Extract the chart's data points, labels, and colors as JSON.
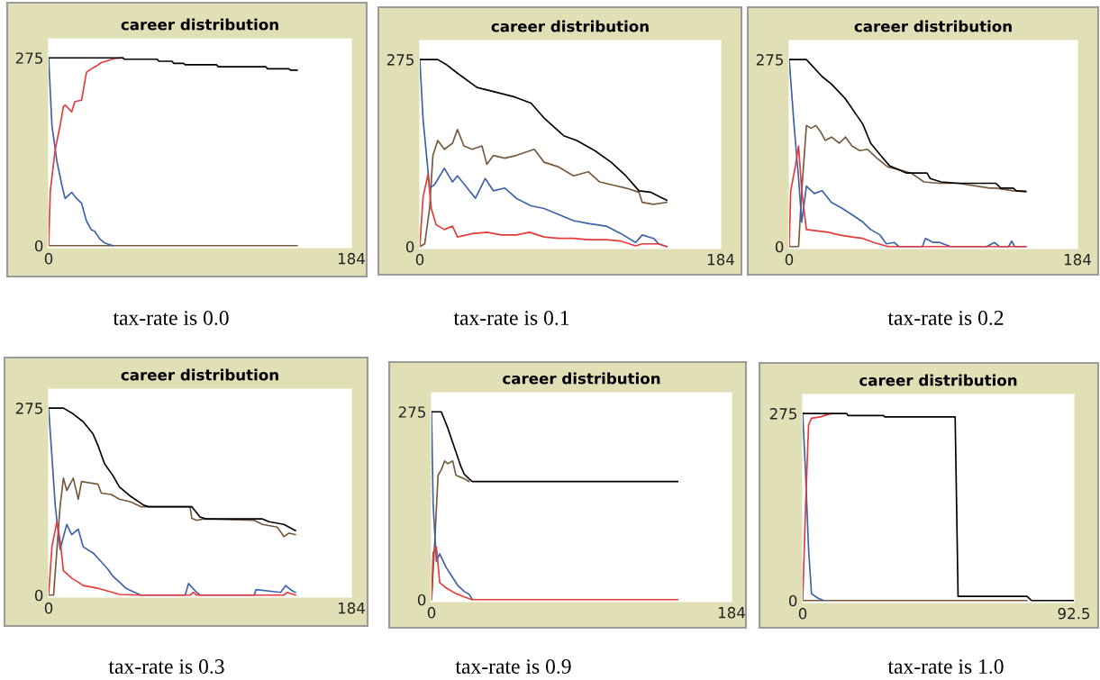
{
  "chart_data": [
    {
      "type": "line",
      "title": "career distribution",
      "annotations": [
        "tax-rate is 0.0"
      ],
      "xlim": [
        0,
        184
      ],
      "xticks": [
        0,
        184
      ],
      "ylim": [
        -3,
        303
      ],
      "yticks": [
        0,
        275
      ],
      "grid": false,
      "marker": "none",
      "line_style": "solid",
      "series": [
        {
          "color": "#765a3e",
          "x": [
            0,
            151
          ],
          "values": [
            0,
            0
          ]
        },
        {
          "color": "#3d62a8",
          "x": [
            0,
            2,
            5,
            8,
            10,
            14,
            17,
            20,
            23,
            26,
            28,
            31,
            34,
            39
          ],
          "values": [
            275,
            176,
            124,
            89,
            69,
            78,
            69,
            62,
            36,
            23,
            21,
            10,
            4,
            0
          ]
        },
        {
          "color": "#e53b3b",
          "x": [
            0,
            1,
            4,
            7,
            9,
            10,
            14,
            16,
            20,
            23,
            26,
            29,
            32,
            40,
            45
          ],
          "values": [
            0,
            80,
            141,
            176,
            204,
            206,
            196,
            211,
            213,
            254,
            259,
            263,
            268,
            274,
            275
          ]
        },
        {
          "color": "#000000",
          "x": [
            0,
            45,
            46,
            66,
            67,
            75,
            76,
            82,
            83,
            102,
            103,
            132,
            133,
            146,
            147,
            151
          ],
          "values": [
            275,
            275,
            273,
            273,
            270,
            270,
            267,
            267,
            265,
            265,
            262,
            262,
            259,
            259,
            257,
            257
          ]
        }
      ]
    },
    {
      "type": "line",
      "title": "career distribution",
      "annotations": [
        "tax-rate is 0.1"
      ],
      "xlim": [
        0,
        184
      ],
      "xticks": [
        0,
        184
      ],
      "ylim": [
        -3,
        303
      ],
      "yticks": [
        0,
        275
      ],
      "grid": false,
      "marker": "none",
      "line_style": "solid",
      "series": [
        {
          "color": "#765a3e",
          "x": [
            0,
            3,
            6,
            8,
            11,
            15,
            20,
            23,
            27,
            32,
            38,
            41,
            45,
            52,
            59,
            70,
            76,
            85,
            94,
            103,
            110,
            117,
            126,
            134,
            136,
            143,
            151
          ],
          "values": [
            0,
            4,
            56,
            134,
            156,
            143,
            152,
            172,
            148,
            143,
            148,
            121,
            134,
            130,
            134,
            143,
            124,
            117,
            104,
            110,
            95,
            91,
            86,
            80,
            65,
            62,
            65
          ]
        },
        {
          "color": "#3d62a8",
          "x": [
            0,
            2,
            6,
            9,
            15,
            20,
            23,
            29,
            34,
            40,
            45,
            52,
            59,
            68,
            76,
            85,
            94,
            103,
            114,
            123,
            132,
            136,
            143,
            146,
            151
          ],
          "values": [
            275,
            187,
            86,
            91,
            115,
            95,
            104,
            86,
            71,
            100,
            82,
            86,
            71,
            60,
            56,
            47,
            38,
            34,
            30,
            19,
            6,
            17,
            12,
            4,
            0
          ]
        },
        {
          "color": "#e53b3b",
          "x": [
            0,
            2,
            5,
            7,
            10,
            15,
            20,
            23,
            32,
            41,
            50,
            59,
            67,
            76,
            85,
            94,
            103,
            114,
            123,
            132,
            136,
            146,
            151
          ],
          "values": [
            0,
            73,
            106,
            56,
            32,
            25,
            30,
            14,
            19,
            21,
            17,
            17,
            21,
            14,
            12,
            12,
            10,
            10,
            8,
            1,
            4,
            4,
            0
          ]
        },
        {
          "color": "#000000",
          "x": [
            0,
            11,
            16,
            23,
            35,
            45,
            58,
            68,
            76,
            88,
            96,
            107,
            117,
            126,
            134,
            141,
            151
          ],
          "values": [
            275,
            275,
            268,
            255,
            234,
            228,
            220,
            211,
            189,
            163,
            156,
            141,
            124,
            104,
            82,
            80,
            68
          ]
        }
      ]
    },
    {
      "type": "line",
      "title": "career distribution",
      "annotations": [
        "tax-rate is 0.2"
      ],
      "xlim": [
        0,
        184
      ],
      "xticks": [
        0,
        184
      ],
      "ylim": [
        -3,
        303
      ],
      "yticks": [
        0,
        275
      ],
      "grid": false,
      "marker": "none",
      "line_style": "solid",
      "series": [
        {
          "color": "#765a3e",
          "x": [
            0,
            6,
            8,
            11,
            14,
            17,
            20,
            23,
            27,
            32,
            36,
            40,
            45,
            50,
            56,
            63,
            70,
            78,
            86,
            96,
            108,
            128,
            132,
            143,
            151
          ],
          "values": [
            0,
            0,
            82,
            178,
            174,
            178,
            169,
            156,
            161,
            152,
            161,
            148,
            141,
            143,
            130,
            117,
            113,
            108,
            95,
            93,
            93,
            86,
            86,
            82,
            81
          ]
        },
        {
          "color": "#3d62a8",
          "x": [
            0,
            3,
            6,
            8,
            11,
            16,
            21,
            27,
            34,
            40,
            47,
            52,
            58,
            62,
            67,
            70,
            85,
            87,
            92,
            96,
            103,
            126,
            131,
            134,
            140,
            142,
            144,
            151
          ],
          "values": [
            275,
            182,
            100,
            36,
            89,
            78,
            82,
            65,
            56,
            47,
            36,
            25,
            17,
            4,
            6,
            0,
            0,
            12,
            6,
            6,
            0,
            0,
            6,
            0,
            0,
            8,
            0,
            0
          ]
        },
        {
          "color": "#e53b3b",
          "x": [
            0,
            1,
            4,
            6,
            8,
            11,
            18,
            25,
            32,
            40,
            47,
            54,
            63,
            151
          ],
          "values": [
            0,
            82,
            119,
            148,
            82,
            25,
            23,
            21,
            17,
            14,
            12,
            6,
            0,
            0
          ]
        },
        {
          "color": "#000000",
          "x": [
            0,
            11,
            21,
            27,
            36,
            47,
            52,
            58,
            64,
            75,
            88,
            90,
            97,
            108,
            132,
            135,
            143,
            145,
            151
          ],
          "values": [
            275,
            275,
            250,
            239,
            217,
            180,
            152,
            135,
            119,
            108,
            108,
            100,
            95,
            93,
            93,
            86,
            86,
            82,
            81
          ]
        }
      ]
    },
    {
      "type": "line",
      "title": "career distribution",
      "annotations": [
        "tax-rate is 0.3"
      ],
      "xlim": [
        0,
        184
      ],
      "xticks": [
        0,
        184
      ],
      "ylim": [
        -3,
        303
      ],
      "yticks": [
        0,
        275
      ],
      "grid": false,
      "marker": "none",
      "line_style": "solid",
      "series": [
        {
          "color": "#765a3e",
          "x": [
            0,
            3,
            7,
            9,
            11,
            15,
            18,
            20,
            25,
            30,
            32,
            38,
            43,
            50,
            56,
            86,
            87,
            90,
            94,
            125,
            130,
            139,
            143,
            146,
            150
          ],
          "values": [
            0,
            0,
            132,
            172,
            154,
            172,
            141,
            167,
            165,
            163,
            150,
            148,
            141,
            137,
            130,
            130,
            113,
            110,
            112,
            110,
            104,
            100,
            86,
            91,
            89
          ]
        },
        {
          "color": "#3d62a8",
          "x": [
            0,
            4,
            7,
            11,
            14,
            18,
            21,
            27,
            32,
            36,
            39,
            47,
            56,
            83,
            85,
            90,
            92,
            125,
            126,
            134,
            141,
            144,
            147,
            150
          ],
          "values": [
            275,
            132,
            67,
            104,
            89,
            97,
            71,
            62,
            49,
            38,
            28,
            10,
            0,
            0,
            17,
            4,
            0,
            0,
            8,
            6,
            4,
            14,
            8,
            4
          ]
        },
        {
          "color": "#e53b3b",
          "x": [
            0,
            2,
            5,
            7,
            9,
            14,
            18,
            21,
            30,
            36,
            43,
            56,
            86,
            88,
            90,
            143,
            145,
            150
          ],
          "values": [
            0,
            71,
            108,
            80,
            36,
            25,
            19,
            14,
            10,
            6,
            1,
            0,
            0,
            4,
            0,
            0,
            4,
            0
          ]
        },
        {
          "color": "#000000",
          "x": [
            0,
            9,
            14,
            21,
            27,
            30,
            34,
            39,
            43,
            50,
            58,
            61,
            87,
            92,
            96,
            130,
            134,
            143,
            150
          ],
          "values": [
            275,
            275,
            268,
            255,
            237,
            220,
            193,
            176,
            159,
            145,
            132,
            130,
            130,
            115,
            112,
            112,
            108,
            104,
            95
          ]
        }
      ]
    },
    {
      "type": "line",
      "title": "career distribution",
      "annotations": [
        "tax-rate is 0.9"
      ],
      "xlim": [
        0,
        184
      ],
      "xticks": [
        0,
        184
      ],
      "ylim": [
        -3,
        303
      ],
      "yticks": [
        0,
        275
      ],
      "grid": false,
      "marker": "none",
      "line_style": "solid",
      "series": [
        {
          "color": "#765a3e",
          "x": [
            0,
            2,
            4,
            6,
            8,
            10,
            13,
            15,
            20,
            23
          ],
          "values": [
            0,
            86,
            182,
            190,
            203,
            199,
            203,
            182,
            177,
            173
          ]
        },
        {
          "color": "#3d62a8",
          "x": [
            0,
            1,
            3,
            5,
            9,
            12,
            16,
            20,
            23,
            25
          ],
          "values": [
            275,
            138,
            56,
            67,
            47,
            36,
            21,
            12,
            8,
            0
          ]
        },
        {
          "color": "#e53b3b",
          "x": [
            0,
            1,
            3,
            5,
            9,
            14,
            20,
            25,
            151
          ],
          "values": [
            0,
            69,
            77,
            25,
            17,
            10,
            4,
            0,
            0
          ]
        },
        {
          "color": "#000000",
          "x": [
            0,
            6,
            10,
            15,
            18,
            20,
            23,
            25,
            151
          ],
          "values": [
            275,
            275,
            251,
            216,
            195,
            184,
            177,
            173,
            173
          ]
        }
      ]
    },
    {
      "type": "line",
      "title": "career distribution",
      "annotations": [
        "tax-rate is 1.0"
      ],
      "xlim": [
        0,
        92.5
      ],
      "xticks": [
        0,
        92.5
      ],
      "ylim": [
        -3,
        303
      ],
      "yticks": [
        0,
        275
      ],
      "grid": false,
      "marker": "none",
      "line_style": "solid",
      "series": [
        {
          "color": "#765a3e",
          "x": [
            0,
            76.5
          ],
          "values": [
            0,
            0
          ]
        },
        {
          "color": "#3d62a8",
          "x": [
            0,
            1,
            2,
            3,
            5,
            7
          ],
          "values": [
            275,
            185,
            76,
            10,
            4,
            0
          ]
        },
        {
          "color": "#e53b3b",
          "x": [
            0,
            1,
            2,
            3,
            6,
            9,
            10.5
          ],
          "values": [
            0,
            141,
            258,
            268,
            270,
            274,
            275
          ]
        },
        {
          "color": "#000000",
          "x": [
            0,
            15,
            15.5,
            27.5,
            28,
            52,
            53,
            76.5,
            78,
            92.5
          ],
          "values": [
            275,
            275,
            272,
            272,
            270,
            270,
            6,
            6,
            0,
            0
          ]
        }
      ]
    }
  ]
}
